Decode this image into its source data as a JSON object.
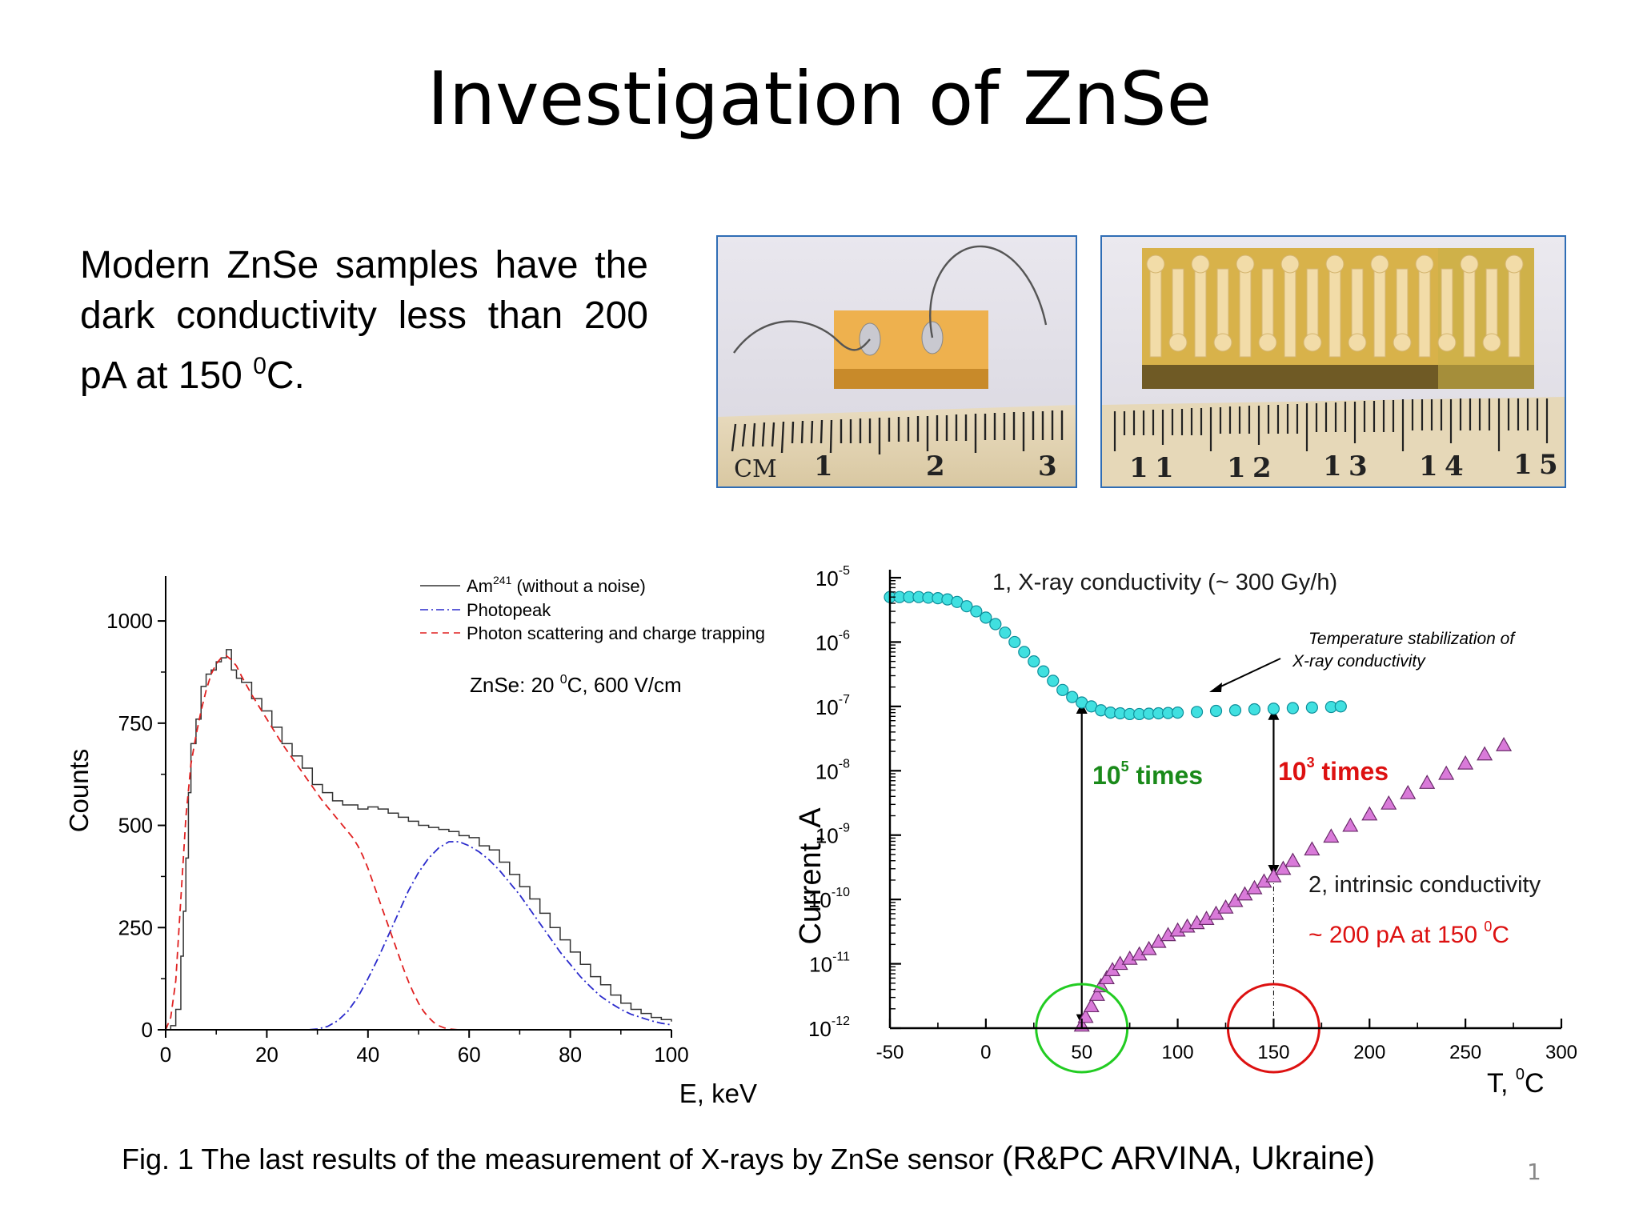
{
  "slide": {
    "title": "Investigation of ZnSe",
    "intro": {
      "part1": "Modern ZnSe samples have the dark conductivity less than 200 pA at 150 ",
      "sup": "0",
      "part2": "C."
    },
    "caption": {
      "main": "Fig. 1 The last results of the measurement of X-rays by ZnSe sensor ",
      "org": "(R&PC ARVINA, Ukraine)"
    },
    "page_number": "1"
  },
  "photos": [
    {
      "subject": "ZnSe sample with two wire contacts on ruler",
      "ruler_labels": [
        "CM",
        "1",
        "2",
        "3"
      ]
    },
    {
      "subject": "ZnSe strip detector with comb electrodes on ruler",
      "ruler_labels": [
        "1",
        "1",
        "1",
        "2",
        "1",
        "3",
        "1",
        "4",
        "1",
        "5"
      ]
    }
  ],
  "chart_data": [
    {
      "type": "line",
      "xlabel": "E, keV",
      "ylabel": "Counts",
      "xlim": [
        0,
        100
      ],
      "ylim": [
        0,
        1100
      ],
      "xticks": [
        "0",
        "20",
        "40",
        "60",
        "80",
        "100"
      ],
      "yticks": [
        "0",
        "250",
        "500",
        "750",
        "1000"
      ],
      "grid": false,
      "legend_position": "top-right",
      "annotation": {
        "pre": "ZnSe: 20 ",
        "sup": "0",
        "post": "C, 600 V/cm"
      },
      "series": [
        {
          "name": "Am",
          "name_sup": "241",
          "name_suffix": " (without a noise)",
          "color": "#333333",
          "dash": "solid",
          "x": [
            0,
            1,
            2,
            3,
            3.5,
            4,
            4.5,
            5,
            6,
            7,
            8,
            9,
            10,
            11,
            12,
            13,
            14,
            15,
            17,
            19,
            21,
            23,
            25,
            27,
            29,
            31,
            33,
            35,
            37,
            38,
            40,
            42,
            44,
            46,
            48,
            50,
            52,
            54,
            56,
            58,
            60,
            62,
            64,
            66,
            68,
            70,
            72,
            74,
            76,
            78,
            80,
            82,
            84,
            86,
            88,
            90,
            92,
            94,
            96,
            98,
            100
          ],
          "y": [
            0,
            10,
            50,
            180,
            290,
            420,
            580,
            700,
            760,
            840,
            870,
            880,
            900,
            910,
            930,
            880,
            860,
            850,
            810,
            780,
            740,
            700,
            670,
            640,
            600,
            580,
            560,
            550,
            550,
            540,
            545,
            540,
            530,
            520,
            510,
            500,
            495,
            490,
            485,
            475,
            470,
            450,
            440,
            410,
            380,
            350,
            320,
            285,
            250,
            220,
            190,
            160,
            130,
            110,
            85,
            65,
            50,
            40,
            30,
            25,
            20
          ]
        },
        {
          "name": "Photopeak",
          "color": "#2a2acc",
          "dash": "dashdot",
          "x": [
            0,
            10,
            20,
            28,
            30,
            32,
            34,
            36,
            38,
            40,
            42,
            44,
            46,
            48,
            50,
            52,
            54,
            56,
            58,
            60,
            62,
            64,
            66,
            68,
            70,
            72,
            74,
            76,
            78,
            80,
            82,
            84,
            86,
            88,
            90,
            92,
            94,
            96,
            98,
            100
          ],
          "y": [
            0,
            0,
            0,
            0,
            2,
            8,
            22,
            45,
            80,
            125,
            175,
            230,
            285,
            340,
            385,
            420,
            445,
            460,
            460,
            450,
            435,
            415,
            390,
            360,
            330,
            295,
            260,
            225,
            190,
            160,
            130,
            105,
            82,
            65,
            50,
            38,
            30,
            22,
            16,
            12
          ]
        },
        {
          "name": "Photon scattering and charge trapping",
          "color": "#e02020",
          "dash": "dashed",
          "x": [
            0,
            1,
            2,
            3,
            4,
            5,
            6,
            7,
            8,
            9,
            10,
            11,
            12,
            13,
            14,
            15,
            17,
            19,
            21,
            23,
            25,
            27,
            29,
            31,
            33,
            35,
            36,
            37,
            38,
            39,
            40,
            41,
            42,
            43,
            44,
            45,
            46,
            47,
            48,
            49,
            50,
            51,
            52,
            53,
            54,
            55,
            56,
            58,
            60,
            65,
            100
          ],
          "y": [
            0,
            30,
            120,
            320,
            520,
            650,
            720,
            780,
            830,
            870,
            895,
            910,
            915,
            905,
            890,
            865,
            820,
            780,
            740,
            700,
            665,
            630,
            595,
            560,
            530,
            500,
            485,
            470,
            450,
            425,
            395,
            360,
            325,
            290,
            255,
            220,
            185,
            150,
            118,
            90,
            65,
            45,
            30,
            18,
            10,
            5,
            2,
            0,
            0,
            0,
            0
          ]
        }
      ]
    },
    {
      "type": "scatter",
      "xlabel": "T, ⁰C",
      "xlabel_text": "T, ",
      "xlabel_sup": "0",
      "xlabel_unit": "C",
      "ylabel": "Current, A",
      "y_scale": "log",
      "xlim": [
        -50,
        300
      ],
      "ylim": [
        1e-12,
        1e-05
      ],
      "xticks": [
        "-50",
        "0",
        "50",
        "100",
        "150",
        "200",
        "250",
        "300"
      ],
      "yticks": [
        {
          "base": "10",
          "exp": "-5"
        },
        {
          "base": "10",
          "exp": "-6"
        },
        {
          "base": "10",
          "exp": "-7"
        },
        {
          "base": "10",
          "exp": "-8"
        },
        {
          "base": "10",
          "exp": "-9"
        },
        {
          "base": "10",
          "exp": "-10"
        },
        {
          "base": "10",
          "exp": "-11"
        },
        {
          "base": "10",
          "exp": "-12"
        }
      ],
      "series": [
        {
          "name": "1, X-ray conductivity (~ 300 Gy/h)",
          "marker": "circle",
          "color": "#40e0e0",
          "x": [
            -50,
            -45,
            -40,
            -35,
            -30,
            -25,
            -20,
            -15,
            -10,
            -5,
            0,
            5,
            10,
            15,
            20,
            25,
            30,
            35,
            40,
            45,
            50,
            55,
            60,
            65,
            70,
            75,
            80,
            85,
            90,
            95,
            100,
            110,
            120,
            130,
            140,
            150,
            160,
            170,
            180,
            185
          ],
          "y": [
            5e-06,
            5e-06,
            5e-06,
            5e-06,
            4.9e-06,
            4.8e-06,
            4.6e-06,
            4.2e-06,
            3.6e-06,
            3e-06,
            2.4e-06,
            1.9e-06,
            1.4e-06,
            1e-06,
            7e-07,
            5e-07,
            3.5e-07,
            2.5e-07,
            1.8e-07,
            1.4e-07,
            1.15e-07,
            1e-07,
            8.7e-08,
            8e-08,
            7.8e-08,
            7.6e-08,
            7.6e-08,
            7.7e-08,
            7.8e-08,
            7.9e-08,
            8e-08,
            8.2e-08,
            8.5e-08,
            8.7e-08,
            9e-08,
            9.2e-08,
            9.4e-08,
            9.6e-08,
            9.8e-08,
            1e-07
          ]
        },
        {
          "name": "2, intrinsic conductivity",
          "marker": "triangle",
          "color": "#d97ad9",
          "x": [
            50,
            52,
            55,
            58,
            60,
            63,
            66,
            70,
            75,
            80,
            85,
            90,
            95,
            100,
            105,
            110,
            115,
            120,
            125,
            130,
            135,
            140,
            145,
            150,
            155,
            160,
            170,
            180,
            190,
            200,
            210,
            220,
            230,
            240,
            250,
            260,
            270
          ],
          "y": [
            1.1e-12,
            1.5e-12,
            2.2e-12,
            3.3e-12,
            4.5e-12,
            6e-12,
            8e-12,
            1e-11,
            1.2e-11,
            1.4e-11,
            1.7e-11,
            2.2e-11,
            2.8e-11,
            3.3e-11,
            3.8e-11,
            4.3e-11,
            5e-11,
            6e-11,
            7.5e-11,
            9.5e-11,
            1.2e-10,
            1.5e-10,
            1.9e-10,
            2.3e-10,
            3e-10,
            4e-10,
            6e-10,
            9.5e-10,
            1.4e-09,
            2.1e-09,
            3.1e-09,
            4.5e-09,
            6.5e-09,
            9e-09,
            1.3e-08,
            1.8e-08,
            2.5e-08
          ]
        }
      ],
      "annotations": {
        "stabilization": [
          "Temperature stabilization of",
          "X-ray conductivity"
        ],
        "ratio1": {
          "base": "10",
          "exp": "5",
          "suffix": " times",
          "color": "#1a8a1a"
        },
        "ratio2": {
          "base": "10",
          "exp": "3",
          "suffix": " times",
          "color": "#dd1111"
        },
        "dark_current": {
          "pre": "~ 200 pA at 150 ",
          "sup": "0",
          "post": "C",
          "color": "#dd1111"
        }
      },
      "highlight_circles": [
        {
          "x": 50,
          "color": "#22cc22"
        },
        {
          "x": 150,
          "color": "#dd1111"
        }
      ]
    }
  ]
}
